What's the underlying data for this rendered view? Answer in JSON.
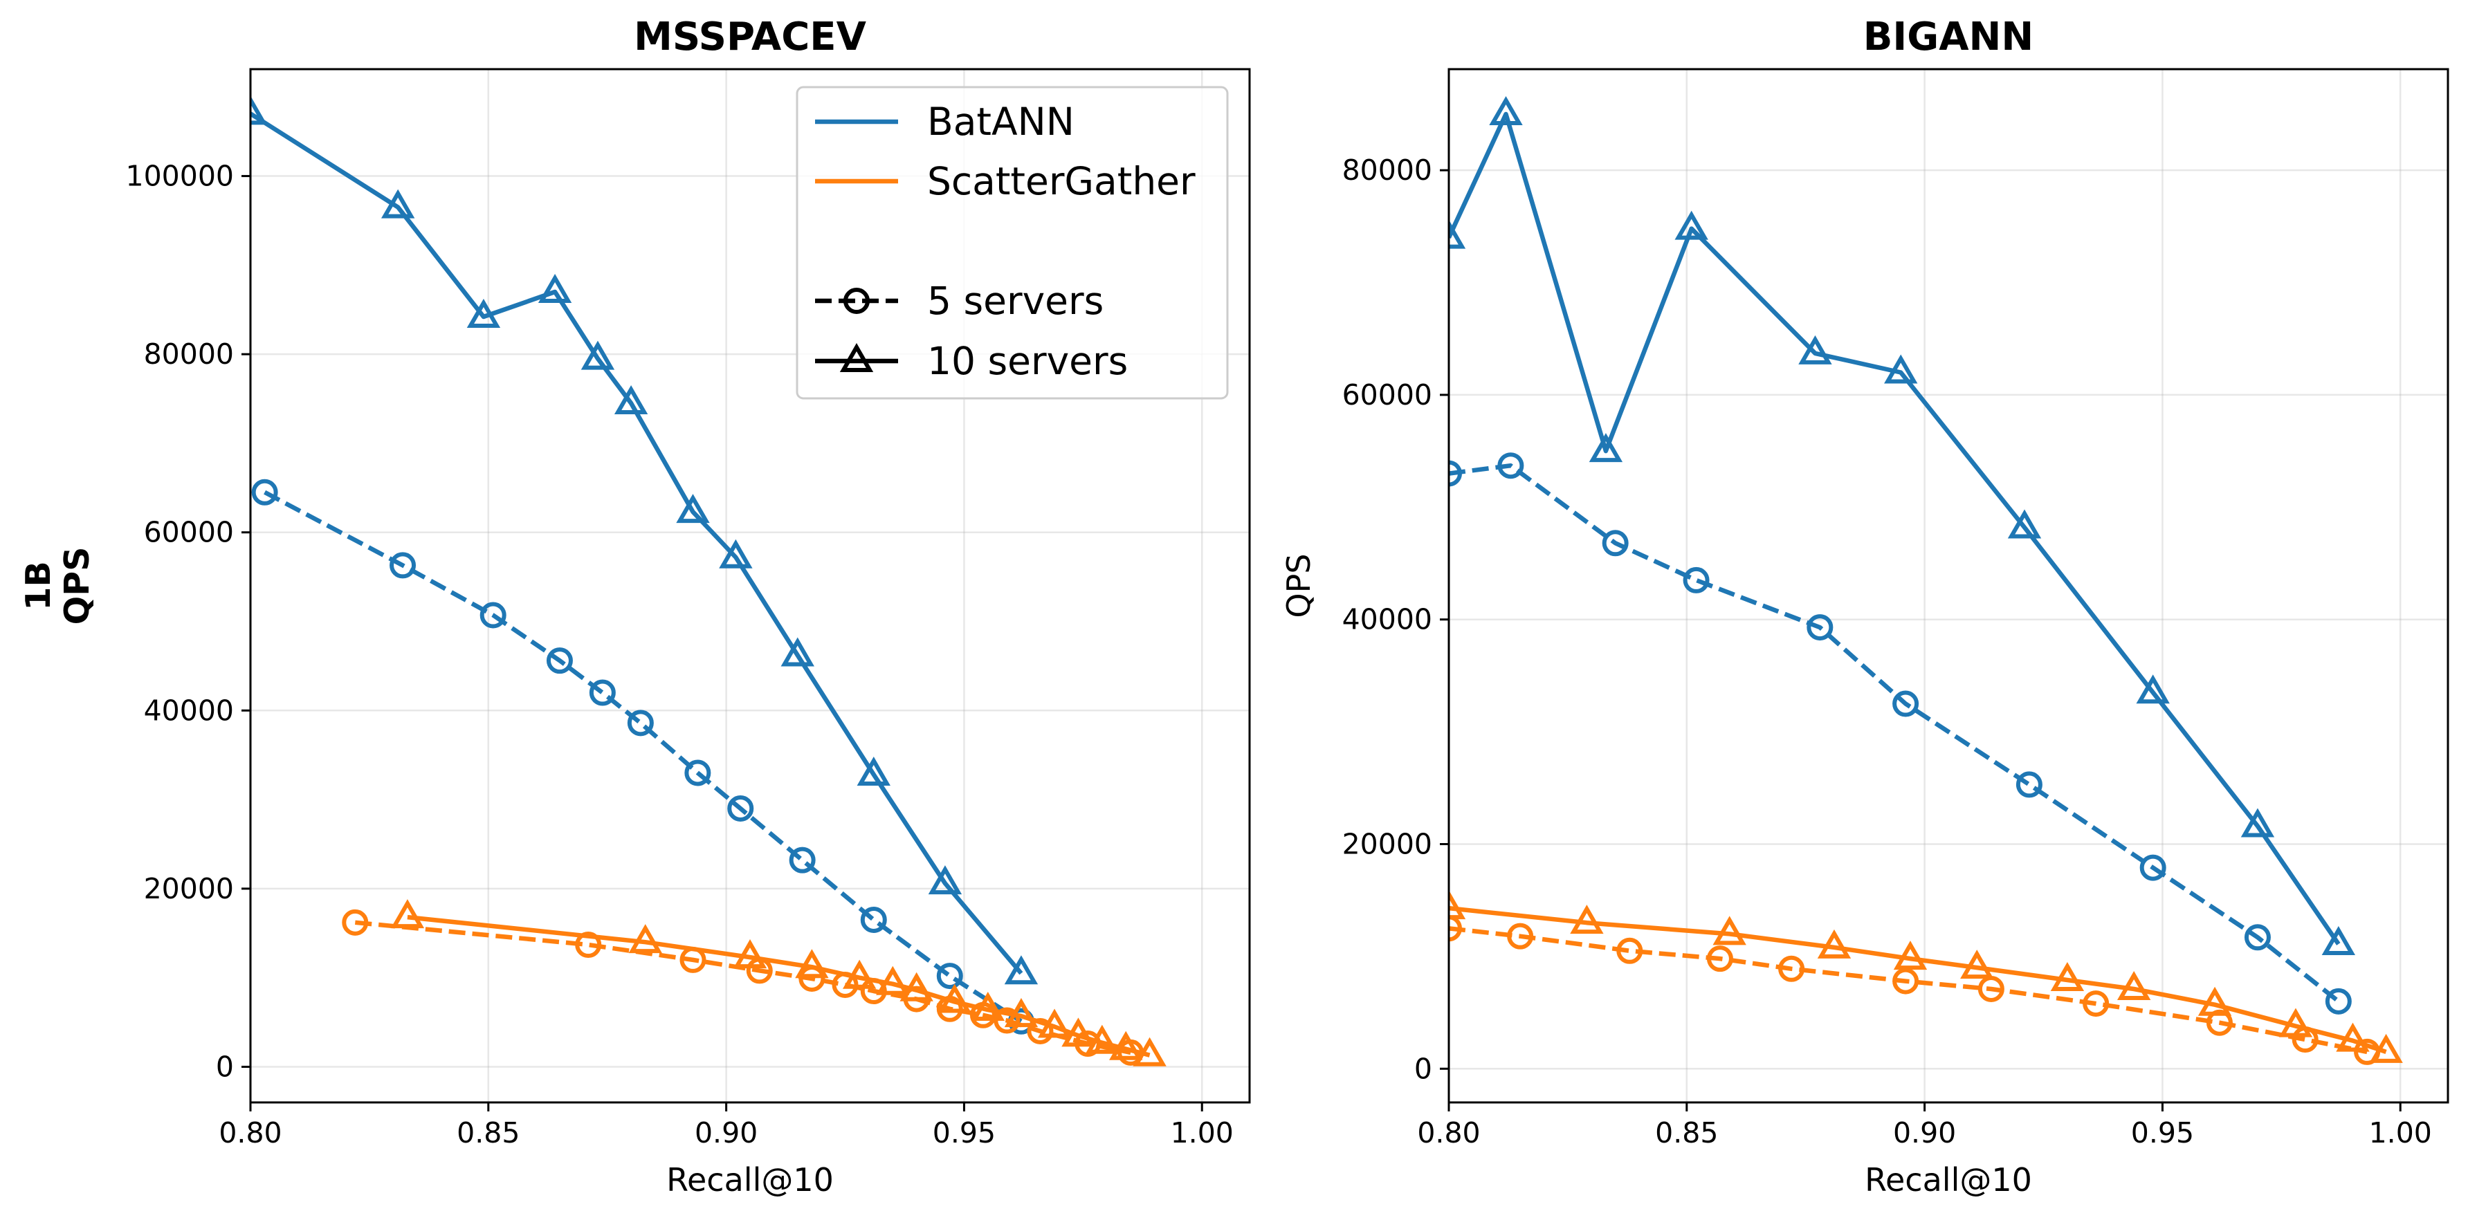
{
  "figure": {
    "row_label": "1B",
    "legend": {
      "methods": [
        {
          "name": "BatANN",
          "color": "#1f77b4"
        },
        {
          "name": "ScatterGather",
          "color": "#ff7f0e"
        }
      ],
      "configs": [
        {
          "name": "5 servers",
          "marker": "circle",
          "dash": "dashed"
        },
        {
          "name": "10 servers",
          "marker": "triangle",
          "dash": "solid"
        }
      ]
    }
  },
  "chart_data": [
    {
      "type": "line",
      "title": "MSSPACEV",
      "xlabel": "Recall@10",
      "ylabel": "QPS",
      "xlim": [
        0.8,
        1.01
      ],
      "ylim": [
        -4000,
        112000
      ],
      "xticks": [
        "0.80",
        "0.85",
        "0.90",
        "0.95",
        "1.00"
      ],
      "yticks": [
        "0",
        "20000",
        "40000",
        "60000",
        "80000",
        "100000"
      ],
      "legend_position": "top-right",
      "series": [
        {
          "name": "BatANN",
          "config": "10 servers",
          "color": "#1f77b4",
          "marker": "triangle",
          "dash": "solid",
          "x": [
            0.8,
            0.831,
            0.849,
            0.864,
            0.873,
            0.88,
            0.893,
            0.902,
            0.915,
            0.931,
            0.946,
            0.962
          ],
          "y": [
            107000,
            96500,
            84200,
            87000,
            79500,
            74500,
            62300,
            57200,
            46200,
            32800,
            20600,
            10500
          ]
        },
        {
          "name": "BatANN",
          "config": "5 servers",
          "color": "#1f77b4",
          "marker": "circle",
          "dash": "dashed",
          "x": [
            0.803,
            0.832,
            0.851,
            0.865,
            0.874,
            0.882,
            0.894,
            0.903,
            0.916,
            0.931,
            0.947,
            0.962
          ],
          "y": [
            64500,
            56300,
            50700,
            45600,
            42000,
            38600,
            33000,
            29000,
            23200,
            16500,
            10200,
            5100
          ]
        },
        {
          "name": "ScatterGather",
          "config": "10 servers",
          "color": "#ff7f0e",
          "marker": "triangle",
          "dash": "solid",
          "x": [
            0.833,
            0.883,
            0.905,
            0.918,
            0.928,
            0.935,
            0.94,
            0.948,
            0.955,
            0.962,
            0.969,
            0.974,
            0.979,
            0.984,
            0.989
          ],
          "y": [
            16800,
            14000,
            12300,
            11200,
            10000,
            9300,
            8600,
            7300,
            6400,
            5700,
            4500,
            3500,
            2700,
            2000,
            1300
          ]
        },
        {
          "name": "ScatterGather",
          "config": "5 servers",
          "color": "#ff7f0e",
          "marker": "circle",
          "dash": "dashed",
          "x": [
            0.822,
            0.871,
            0.893,
            0.907,
            0.918,
            0.925,
            0.931,
            0.94,
            0.947,
            0.954,
            0.959,
            0.966,
            0.976,
            0.985
          ],
          "y": [
            16200,
            13700,
            12000,
            10800,
            9900,
            9200,
            8500,
            7600,
            6500,
            5800,
            5200,
            4000,
            2600,
            1600
          ]
        }
      ]
    },
    {
      "type": "line",
      "title": "BIGANN",
      "xlabel": "Recall@10",
      "ylabel": "QPS",
      "xlim": [
        0.8,
        1.01
      ],
      "ylim": [
        -3000,
        89000
      ],
      "xticks": [
        "0.80",
        "0.85",
        "0.90",
        "0.95",
        "1.00"
      ],
      "yticks": [
        "0",
        "20000",
        "40000",
        "60000",
        "80000"
      ],
      "series": [
        {
          "name": "BatANN",
          "config": "10 servers",
          "color": "#1f77b4",
          "marker": "triangle",
          "dash": "solid",
          "x": [
            0.8,
            0.812,
            0.833,
            0.851,
            0.877,
            0.895,
            0.921,
            0.948,
            0.97,
            0.987
          ],
          "y": [
            74000,
            85000,
            55000,
            74800,
            63700,
            62000,
            48200,
            33500,
            21600,
            11100
          ]
        },
        {
          "name": "BatANN",
          "config": "5 servers",
          "color": "#1f77b4",
          "marker": "circle",
          "dash": "dashed",
          "x": [
            0.8,
            0.813,
            0.835,
            0.852,
            0.878,
            0.896,
            0.922,
            0.948,
            0.97,
            0.987
          ],
          "y": [
            53000,
            53700,
            46800,
            43500,
            39300,
            32500,
            25300,
            17900,
            11700,
            6000
          ]
        },
        {
          "name": "ScatterGather",
          "config": "10 servers",
          "color": "#ff7f0e",
          "marker": "triangle",
          "dash": "solid",
          "x": [
            0.8,
            0.829,
            0.859,
            0.881,
            0.897,
            0.911,
            0.93,
            0.944,
            0.961,
            0.978,
            0.99,
            0.997
          ],
          "y": [
            14300,
            13000,
            12000,
            10800,
            9800,
            9000,
            7900,
            7100,
            5700,
            3800,
            2500,
            1500
          ]
        },
        {
          "name": "ScatterGather",
          "config": "5 servers",
          "color": "#ff7f0e",
          "marker": "circle",
          "dash": "dashed",
          "x": [
            0.8,
            0.815,
            0.838,
            0.857,
            0.872,
            0.896,
            0.914,
            0.936,
            0.962,
            0.98,
            0.993
          ],
          "y": [
            12500,
            11800,
            10500,
            9800,
            8900,
            7800,
            7100,
            5800,
            4100,
            2600,
            1500
          ]
        }
      ]
    }
  ]
}
